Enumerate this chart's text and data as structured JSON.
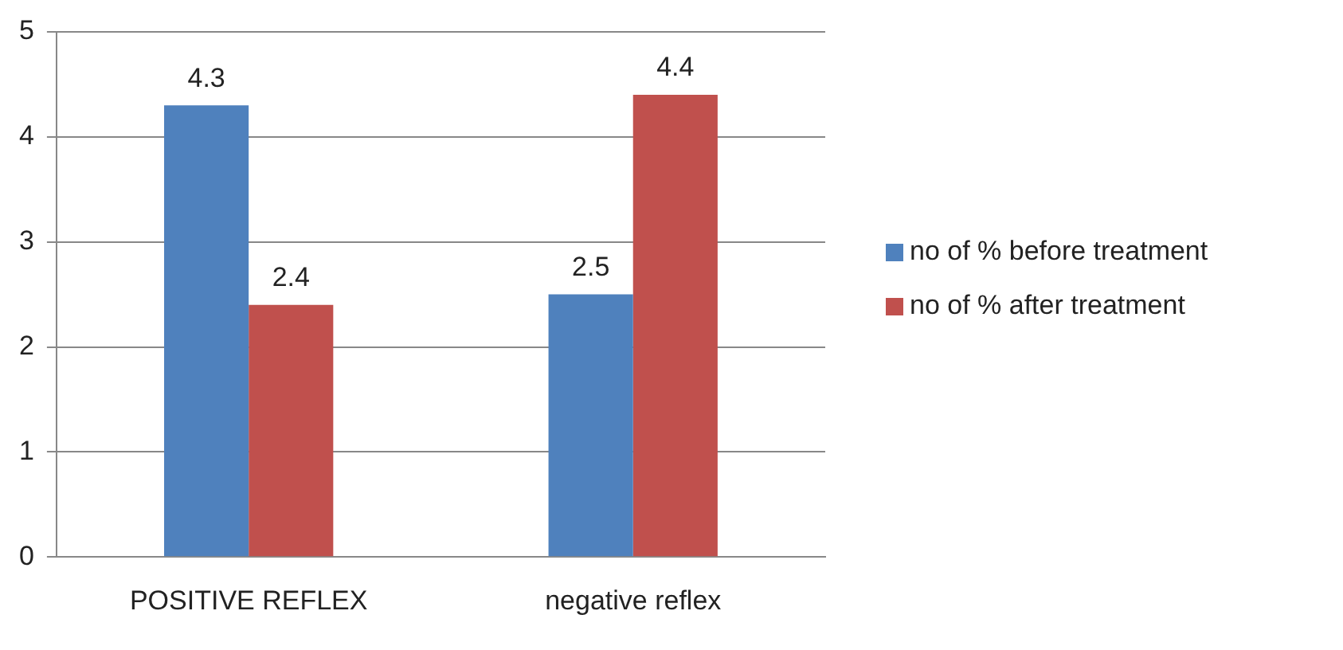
{
  "chart_data": {
    "type": "bar",
    "categories": [
      "POSITIVE REFLEX",
      "negative reflex"
    ],
    "series": [
      {
        "name": "no of % before treatment",
        "color": "#4f81bd",
        "values": [
          4.3,
          2.5
        ]
      },
      {
        "name": "no of % after treatment",
        "color": "#c0504d",
        "values": [
          2.4,
          4.4
        ]
      }
    ],
    "ylim": [
      0,
      5
    ],
    "yticks": [
      0,
      1,
      2,
      3,
      4,
      5
    ],
    "grid": "y",
    "legend": "right",
    "data_labels": true
  }
}
